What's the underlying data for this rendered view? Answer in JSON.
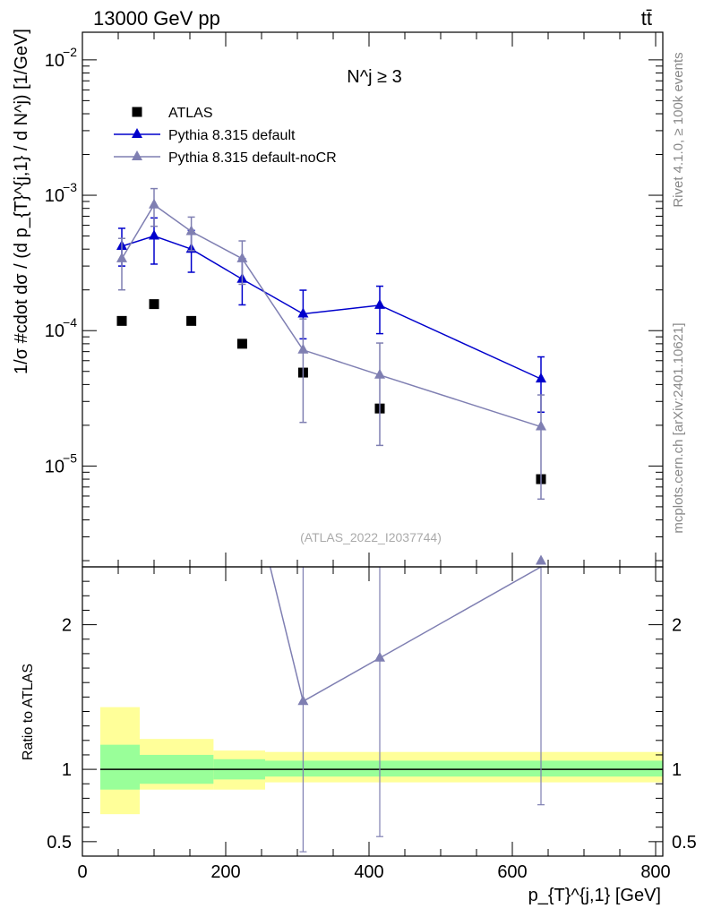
{
  "header": {
    "energy_label": "13000 GeV pp",
    "process_label": "tt̄"
  },
  "side_text": {
    "rivet": "Rivet 4.1.0, ≥ 100k events",
    "mcplots": "mcplots.cern.ch [arXiv:2401.10621]"
  },
  "chart_data": [
    {
      "type": "scatter",
      "panel": "main",
      "title": "N^j ≥ 3",
      "analysis_label": "(ATLAS_2022_I2037744)",
      "xlabel": "p_{T}^{j,1} [GeV]",
      "ylabel": "1/σ #cdot dσ / (d p_{T}^{j,1} / d N^j) [1/GeV]",
      "yscale": "log",
      "xlim": [
        0,
        810
      ],
      "ylim": [
        1.8e-06,
        0.016
      ],
      "x_ticks": [
        "0",
        "200",
        "400",
        "600",
        "800"
      ],
      "y_ticks": [
        {
          "base": "10",
          "exp": "−2",
          "value": 0.01
        },
        {
          "base": "10",
          "exp": "−3",
          "value": 0.001
        },
        {
          "base": "10",
          "exp": "−4",
          "value": 0.0001
        },
        {
          "base": "10",
          "exp": "−5",
          "value": 1e-05
        }
      ],
      "series": [
        {
          "name": "ATLAS",
          "color": "#000000",
          "marker": "square",
          "x": [
            55,
            100,
            152,
            223,
            308,
            415,
            640
          ],
          "y": [
            0.000118,
            0.000157,
            0.000118,
            8e-05,
            4.9e-05,
            2.66e-05,
            8e-06
          ]
        },
        {
          "name": "Pythia 8.315 default",
          "color": "#0000cc",
          "marker": "triangle",
          "x": [
            55,
            100,
            152,
            223,
            308,
            415,
            640
          ],
          "y": [
            0.00042,
            0.0005,
            0.0004,
            0.00024,
            0.000133,
            0.000154,
            4.4e-05
          ],
          "y_low": [
            0.0003,
            0.00031,
            0.00027,
            0.000155,
            8.7e-05,
            9.5e-05,
            2.5e-05
          ],
          "y_high": [
            0.00057,
            0.00068,
            0.00055,
            0.00034,
            0.000199,
            0.000213,
            6.4e-05
          ]
        },
        {
          "name": "Pythia 8.315 default-noCR",
          "color": "#7f7fb2",
          "marker": "triangle",
          "x": [
            55,
            100,
            152,
            223,
            308,
            415,
            640
          ],
          "y": [
            0.00034,
            0.00085,
            0.00054,
            0.00034,
            7.2e-05,
            4.7e-05,
            1.95e-05
          ],
          "y_low": [
            0.0002,
            0.00059,
            0.00039,
            0.00022,
            2.1e-05,
            1.42e-05,
            5.7e-06
          ],
          "y_high": [
            0.00048,
            0.00112,
            0.00069,
            0.00046,
            0.000122,
            8.1e-05,
            3.35e-05
          ]
        }
      ]
    },
    {
      "type": "line",
      "panel": "ratio",
      "ylabel": "Ratio to ATLAS",
      "xlim": [
        0,
        810
      ],
      "ylim": [
        0.4,
        2.4
      ],
      "y_ticks": [
        "0.5",
        "1",
        "2"
      ],
      "bands": {
        "x_edges": [
          25,
          80,
          183,
          255,
          365,
          810
        ],
        "inner_low": [
          0.86,
          0.9,
          0.93,
          0.95,
          0.95
        ],
        "inner_high": [
          1.17,
          1.1,
          1.07,
          1.06,
          1.06
        ],
        "outer_low": [
          0.69,
          0.86,
          0.86,
          0.91,
          0.91
        ],
        "outer_high": [
          1.43,
          1.21,
          1.13,
          1.12,
          1.12
        ],
        "inner_color": "#99ff99",
        "outer_color": "#ffff99"
      },
      "series": [
        {
          "name": "Pythia 8.315 default-noCR",
          "color": "#7f7fb2",
          "x": [
            262,
            308,
            415,
            640
          ],
          "y": [
            2.4,
            1.47,
            1.77,
            2.44
          ],
          "err_x": [
            308,
            415,
            640
          ],
          "err_y": [
            1.47,
            1.77,
            2.44
          ],
          "err_low": [
            0.43,
            0.535,
            0.755
          ],
          "err_high": [
            2.4,
            2.4,
            2.4
          ]
        }
      ]
    }
  ]
}
